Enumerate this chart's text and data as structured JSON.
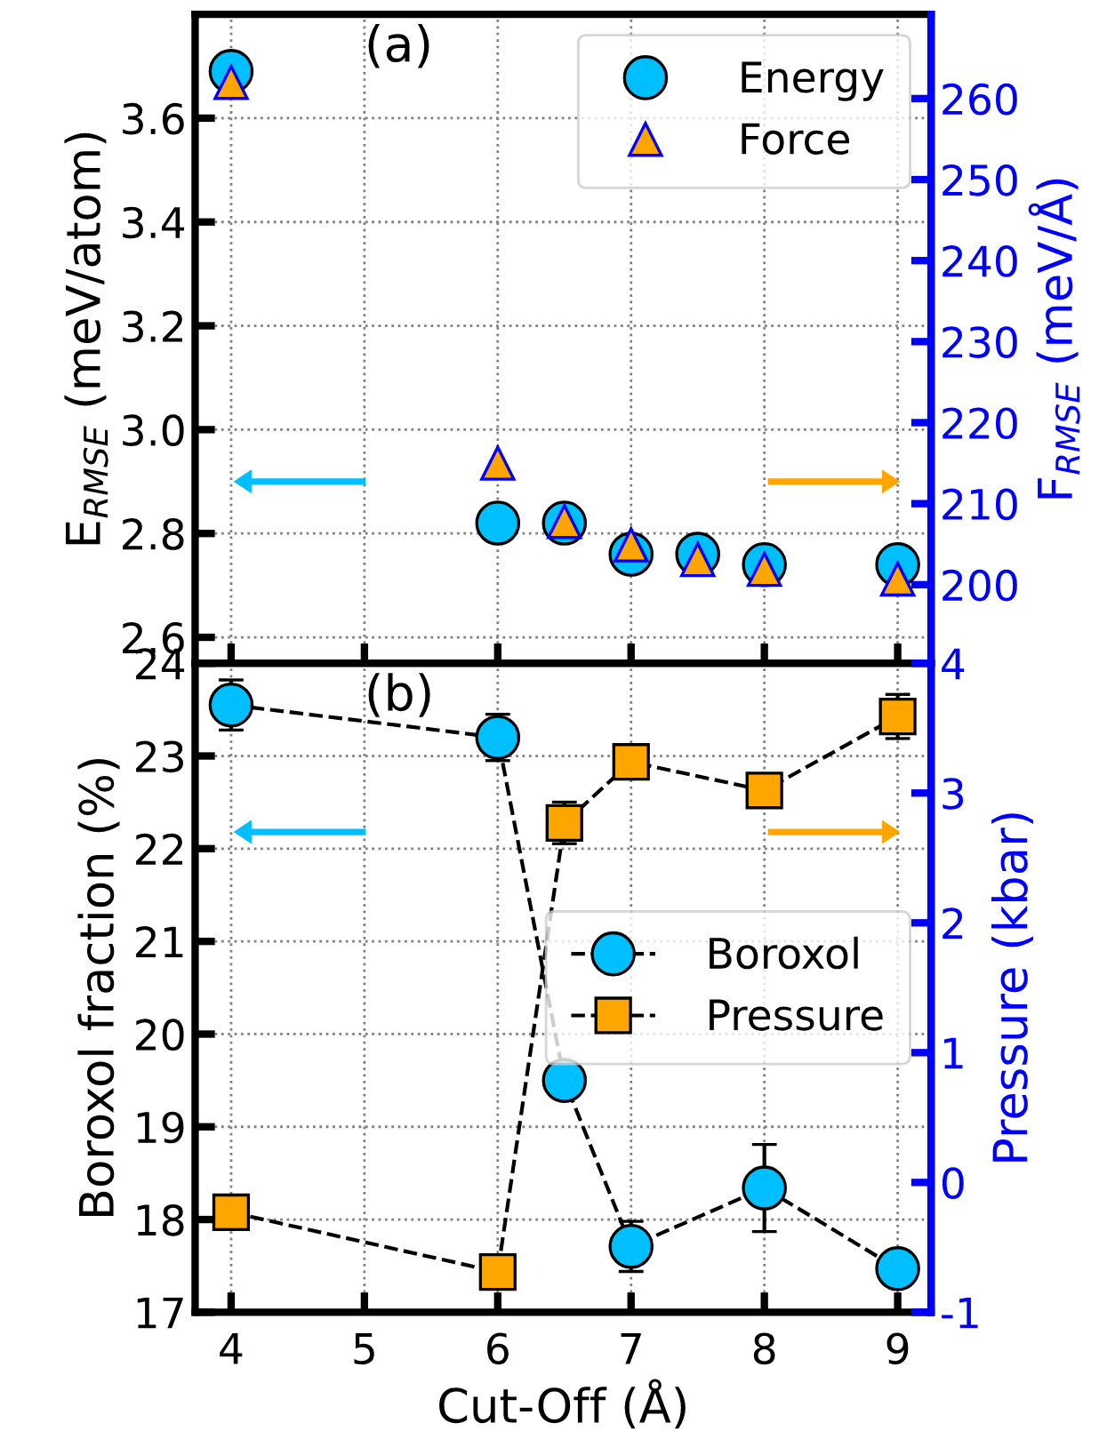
{
  "chart_data": [
    {
      "type": "scatter",
      "x": [
        4,
        6,
        6.5,
        7,
        7.5,
        8,
        9
      ],
      "ylabel": "E$_{RMSE}$ (meV/atom)",
      "y2label": "F$_{RMSE}$ (meV/Å)",
      "xlim": [
        3.73,
        9.25
      ],
      "xticks": [
        4,
        5,
        6,
        7,
        8,
        9
      ],
      "ylim": [
        2.55,
        3.8
      ],
      "yticks": [
        2.6,
        2.8,
        {
          "value": 3.0,
          "label": "3.0"
        },
        3.2,
        3.4,
        3.6
      ],
      "y2lim": [
        190.3,
        270.4
      ],
      "y2ticks": [
        200,
        210,
        220,
        230,
        240,
        250,
        260
      ],
      "tick_labels": "y",
      "grid": true,
      "legend": "top right",
      "annotations": [
        "(a)"
      ],
      "series": [
        {
          "name": "Energy",
          "color": "#00bfff",
          "marker": "circle",
          "values": [
            3.69,
            2.82,
            2.82,
            2.76,
            2.76,
            2.74,
            2.74
          ]
        },
        {
          "name": "Force",
          "color": "#ffa500",
          "marker": "triangle",
          "axis": "y2",
          "values": [
            262,
            215,
            207.8,
            204.9,
            203.1,
            201.9,
            200.7
          ]
        }
      ]
    },
    {
      "type": "line",
      "x": [
        4,
        6,
        6.5,
        7,
        8,
        9
      ],
      "xlabel": "Cut-Off (Å)",
      "ylabel": "Boroxol fraction (%)",
      "y2label": "Pressure (kbar)",
      "xlim": [
        3.73,
        9.25
      ],
      "xticks": [
        4,
        5,
        6,
        7,
        8,
        9
      ],
      "ylim": [
        17,
        24
      ],
      "yticks": [
        17,
        18,
        19,
        20,
        21,
        22,
        23,
        24
      ],
      "y2lim": [
        -1,
        4
      ],
      "y2ticks": [
        -1,
        0,
        1,
        2,
        3,
        4
      ],
      "grid": true,
      "legend": "right",
      "line_style": "dashed",
      "annotations": [
        "(b)"
      ],
      "series": [
        {
          "name": "Boroxol",
          "color": "#00bfff",
          "marker": "circle",
          "values": [
            23.55,
            23.2,
            19.5,
            17.71,
            18.34,
            17.47
          ],
          "errors": [
            0.27,
            0.25,
            null,
            0.27,
            0.47,
            null
          ]
        },
        {
          "name": "Pressure",
          "color": "#ffa500",
          "marker": "square",
          "axis": "y2",
          "values": [
            -0.23,
            -0.69,
            2.77,
            3.24,
            3.02,
            3.59
          ],
          "errors": [
            null,
            null,
            0.16,
            null,
            null,
            0.17
          ]
        }
      ]
    }
  ]
}
